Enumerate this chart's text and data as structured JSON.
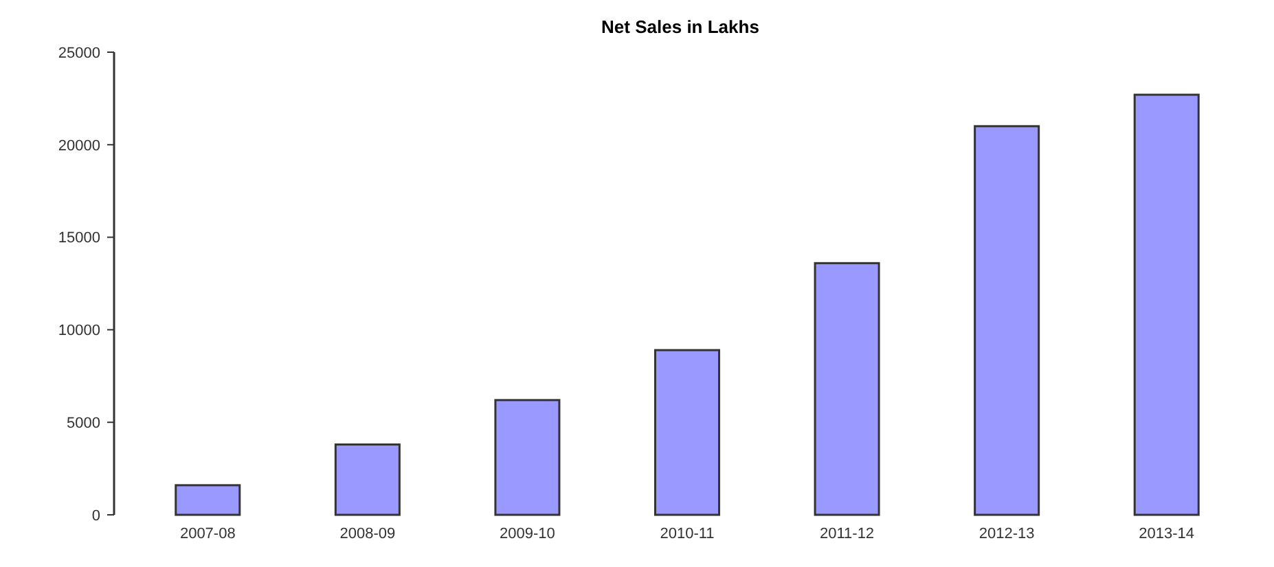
{
  "chart_data": {
    "type": "bar",
    "title": "Net Sales in Lakhs",
    "categories": [
      "2007-08",
      "2008-09",
      "2009-10",
      "2010-11",
      "2011-12",
      "2012-13",
      "2013-14"
    ],
    "values": [
      1600,
      3800,
      6200,
      8900,
      13600,
      21000,
      22700
    ],
    "color": "#9999ff",
    "ylim": [
      0,
      25000
    ],
    "yticks": [
      0,
      5000,
      10000,
      15000,
      20000,
      25000
    ]
  }
}
